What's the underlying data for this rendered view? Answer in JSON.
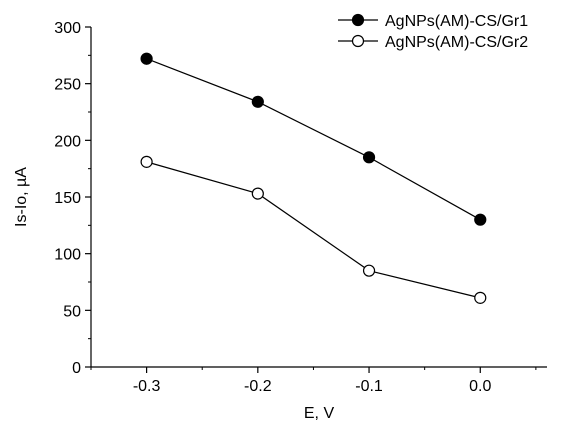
{
  "chart_data": {
    "type": "line",
    "title": "",
    "xlabel": "E, V",
    "ylabel": "Is-Io, µA",
    "x": [
      -0.3,
      -0.2,
      -0.1,
      0.0
    ],
    "x_ticks": [
      "-0.3",
      "-0.2",
      "-0.1",
      "0.0"
    ],
    "y_ticks": [
      "0",
      "50",
      "100",
      "150",
      "200",
      "250",
      "300"
    ],
    "xlim": [
      -0.35,
      0.06
    ],
    "ylim": [
      0,
      300
    ],
    "grid": false,
    "legend_position": "top-right",
    "series": [
      {
        "name": "AgNPs(AM)-CS/Gr1",
        "marker": "filled-circle",
        "color": "#000000",
        "values": [
          272,
          234,
          185,
          130
        ]
      },
      {
        "name": "AgNPs(AM)-CS/Gr2",
        "marker": "open-circle",
        "color": "#000000",
        "values": [
          181,
          153,
          85,
          61
        ]
      }
    ]
  }
}
